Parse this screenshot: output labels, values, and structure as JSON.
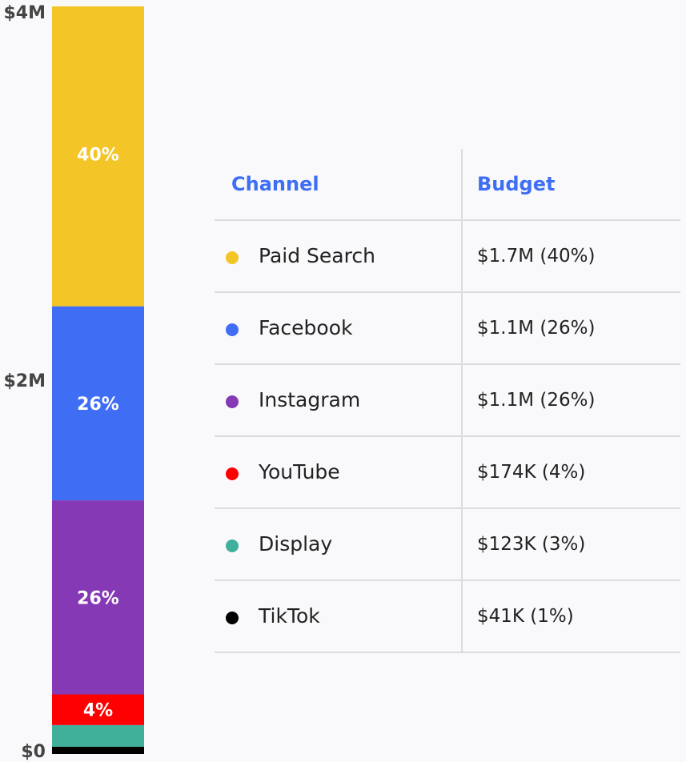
{
  "chart_data": {
    "type": "bar",
    "stacked": true,
    "ylim": [
      0,
      4
    ],
    "y_unit": "$M",
    "y_ticks": [
      {
        "value": 0,
        "label": "$0"
      },
      {
        "value": 2,
        "label": "$2M"
      },
      {
        "value": 4,
        "label": "$4M"
      }
    ],
    "segments": [
      {
        "name": "TikTok",
        "value": 0.041,
        "label": "",
        "color": "#000000"
      },
      {
        "name": "Display",
        "value": 0.123,
        "label": "",
        "color": "#40b09b"
      },
      {
        "name": "YouTube",
        "value": 0.174,
        "label": "4%",
        "color": "#ff0000"
      },
      {
        "name": "Instagram",
        "value": 1.1,
        "label": "26%",
        "color": "#8639b5"
      },
      {
        "name": "Facebook",
        "value": 1.1,
        "label": "26%",
        "color": "#3f6ef5"
      },
      {
        "name": "Paid Search",
        "value": 1.7,
        "label": "40%",
        "color": "#f3c526"
      }
    ]
  },
  "table": {
    "headers": {
      "channel": "Channel",
      "budget": "Budget"
    },
    "rows": [
      {
        "channel": "Paid Search",
        "budget": "$1.7M  (40%)",
        "color": "#f3c526"
      },
      {
        "channel": "Facebook",
        "budget": "$1.1M  (26%)",
        "color": "#3f6ef5"
      },
      {
        "channel": "Instagram",
        "budget": "$1.1M  (26%)",
        "color": "#8639b5"
      },
      {
        "channel": "YouTube",
        "budget": "$174K  (4%)",
        "color": "#ff0000"
      },
      {
        "channel": "Display",
        "budget": "$123K (3%)",
        "color": "#40b09b"
      },
      {
        "channel": "TikTok",
        "budget": "$41K (1%)",
        "color": "#000000"
      }
    ]
  }
}
